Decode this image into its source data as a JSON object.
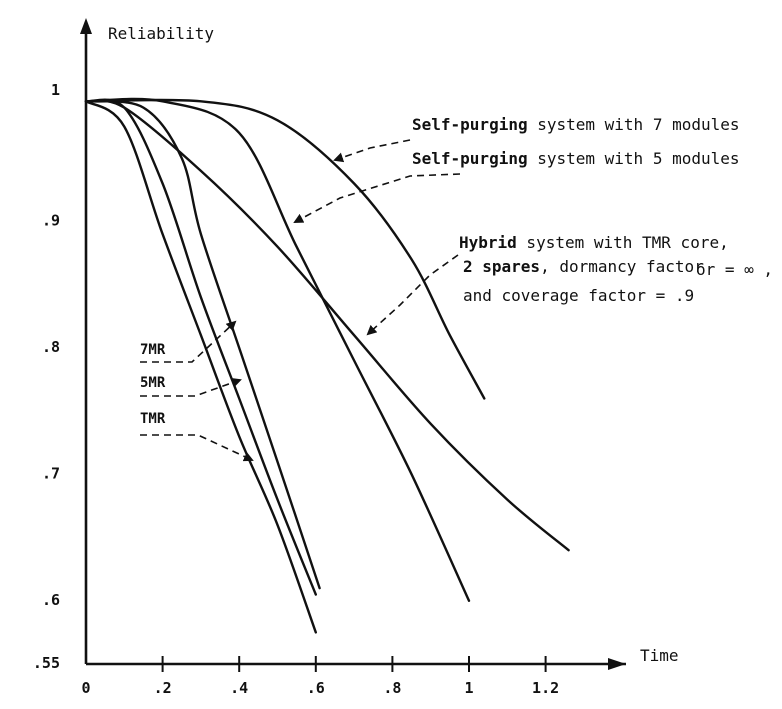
{
  "chart_data": {
    "type": "line",
    "title": "",
    "xlabel": "Time",
    "ylabel": "Reliability",
    "xlim": [
      0,
      1.35
    ],
    "ylim": [
      0.55,
      1.0
    ],
    "x_ticks": [
      {
        "value": 0,
        "label": "0"
      },
      {
        "value": 0.2,
        "label": ".2"
      },
      {
        "value": 0.4,
        "label": ".4"
      },
      {
        "value": 0.6,
        "label": ".6"
      },
      {
        "value": 0.8,
        "label": ".8"
      },
      {
        "value": 1.0,
        "label": "1"
      },
      {
        "value": 1.2,
        "label": "1.2"
      }
    ],
    "y_ticks": [
      {
        "value": 1.0,
        "label": "1"
      },
      {
        "value": 0.9,
        "label": ".9"
      },
      {
        "value": 0.8,
        "label": ".8"
      },
      {
        "value": 0.7,
        "label": ".7"
      },
      {
        "value": 0.6,
        "label": ".6"
      },
      {
        "value": 0.55,
        "label": ".55"
      }
    ],
    "grid": false,
    "series": [
      {
        "name": "TMR",
        "points": [
          [
            0,
            0.995
          ],
          [
            0.1,
            0.975
          ],
          [
            0.2,
            0.89
          ],
          [
            0.3,
            0.81
          ],
          [
            0.4,
            0.73
          ],
          [
            0.5,
            0.66
          ],
          [
            0.6,
            0.575
          ]
        ]
      },
      {
        "name": "5MR",
        "points": [
          [
            0,
            0.995
          ],
          [
            0.1,
            0.99
          ],
          [
            0.2,
            0.93
          ],
          [
            0.3,
            0.84
          ],
          [
            0.4,
            0.76
          ],
          [
            0.5,
            0.68
          ],
          [
            0.6,
            0.605
          ]
        ]
      },
      {
        "name": "7MR",
        "points": [
          [
            0,
            0.995
          ],
          [
            0.15,
            0.99
          ],
          [
            0.25,
            0.95
          ],
          [
            0.3,
            0.89
          ],
          [
            0.4,
            0.8
          ],
          [
            0.5,
            0.71
          ],
          [
            0.61,
            0.61
          ]
        ]
      },
      {
        "name": "Self-purging system with 5 modules",
        "points": [
          [
            0,
            0.995
          ],
          [
            0.2,
            0.995
          ],
          [
            0.4,
            0.97
          ],
          [
            0.55,
            0.88
          ],
          [
            0.7,
            0.79
          ],
          [
            0.85,
            0.7
          ],
          [
            1.0,
            0.6
          ]
        ]
      },
      {
        "name": "Hybrid system with TMR core, 2 spares, dormancy factor = ∞, and coverage factor = .9",
        "points": [
          [
            0,
            0.995
          ],
          [
            0.1,
            0.99
          ],
          [
            0.3,
            0.94
          ],
          [
            0.5,
            0.88
          ],
          [
            0.7,
            0.81
          ],
          [
            0.9,
            0.74
          ],
          [
            1.1,
            0.68
          ],
          [
            1.26,
            0.64
          ]
        ]
      },
      {
        "name": "Self-purging system with 7 modules",
        "points": [
          [
            0,
            0.995
          ],
          [
            0.3,
            0.995
          ],
          [
            0.5,
            0.98
          ],
          [
            0.7,
            0.93
          ],
          [
            0.85,
            0.87
          ],
          [
            0.95,
            0.81
          ],
          [
            1.04,
            0.76
          ]
        ]
      }
    ],
    "annotations": {
      "sp7": {
        "bold": "Self-purging",
        "rest": " system with 7 modules"
      },
      "sp5": {
        "bold": "Self-purging",
        "rest": " system with 5 modules"
      },
      "hybrid_l1_bold": "Hybrid",
      "hybrid_l1_rest": " system with TMR core,",
      "hybrid_l2_bold": "2 spares",
      "hybrid_l2_rest": ", dormancy factor",
      "hybrid_l2_extra": "or = ∞ ,",
      "hybrid_l3": "and coverage factor = .9",
      "label_7mr": "7MR",
      "label_5mr": "5MR",
      "label_tmr": "TMR"
    }
  }
}
